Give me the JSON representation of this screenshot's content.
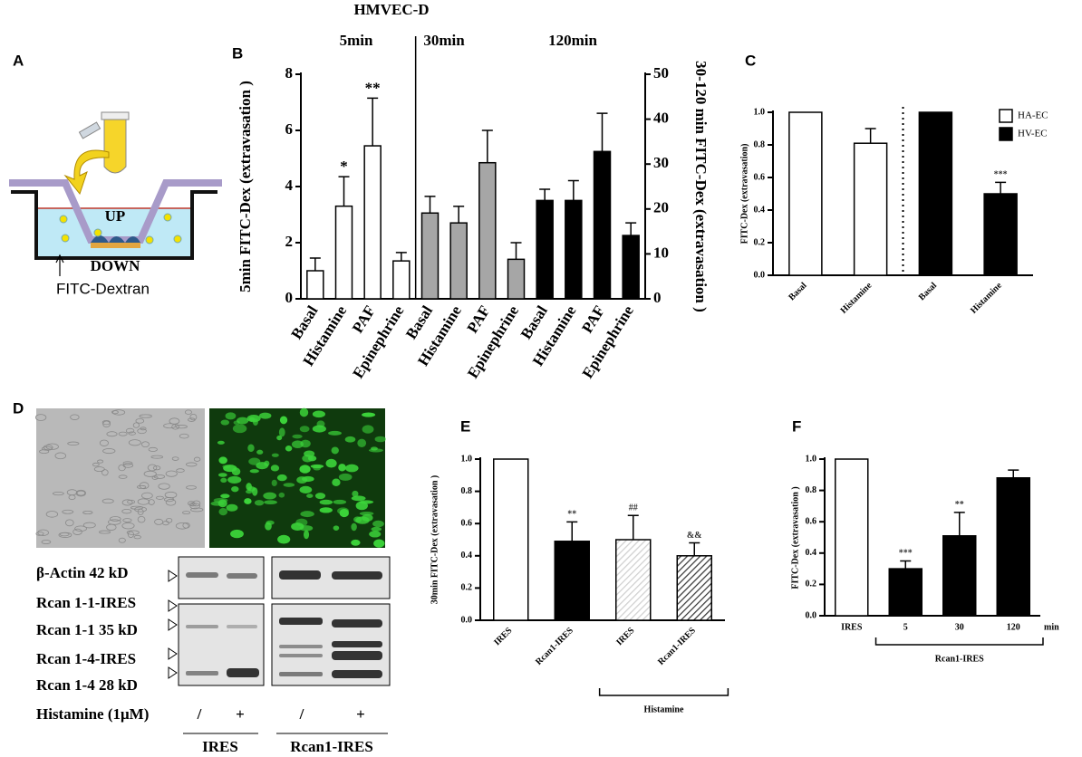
{
  "panel_letters": [
    "A",
    "B",
    "C",
    "D",
    "E",
    "F"
  ],
  "panel_a": {
    "up": "UP",
    "down": "DOWN",
    "label": "FITC-Dextran"
  },
  "panel_d": {
    "rows": [
      "β-Actin  42 kD",
      "Rcan 1-1-IRES",
      "Rcan 1-1  35 kD",
      "Rcan 1-4-IRES",
      "Rcan 1-4  28 kD"
    ],
    "treatment": "Histamine (1μM)",
    "lanes": [
      "/",
      "+",
      "/",
      "+"
    ],
    "groups": [
      "IRES",
      "Rcan1-IRES"
    ]
  },
  "chart_data": [
    {
      "type": "bar",
      "title": "HMVEC-D",
      "ylabel": "5min FITC-Dex (extravasation )",
      "y2label": "30-120 min FITC-Dex (extravasation )",
      "categories": [
        "Basal",
        "Histamine",
        "PAF",
        "Epinephrine",
        "Basal",
        "Histamine",
        "PAF",
        "Epinephrine",
        "Basal",
        "Histamine",
        "PAF",
        "Epinephrine"
      ],
      "ylim": [
        0,
        8
      ],
      "yticks": [
        0,
        2,
        4,
        6,
        8
      ],
      "y2lim": [
        0,
        50
      ],
      "y2ticks": [
        0,
        10,
        20,
        30,
        40,
        50
      ],
      "series": [
        {
          "name": "5min",
          "color": "#ffffff",
          "values": [
            1.0,
            3.3,
            5.45,
            1.35,
            null,
            null,
            null,
            null,
            null,
            null,
            null,
            null
          ],
          "errors": [
            0.45,
            1.05,
            1.7,
            0.3,
            null,
            null,
            null,
            null,
            null,
            null,
            null,
            null
          ],
          "labels": [
            null,
            "*",
            "**",
            null,
            null,
            null,
            null,
            null,
            null,
            null,
            null,
            null
          ]
        },
        {
          "name": "30min",
          "color": "#a6a6a6",
          "axis": "y2",
          "values": [
            null,
            null,
            null,
            null,
            19.1,
            16.9,
            30.3,
            8.8,
            null,
            null,
            null,
            null
          ],
          "errors": [
            null,
            null,
            null,
            null,
            3.7,
            3.7,
            7.2,
            3.7,
            null,
            null,
            null,
            null
          ]
        },
        {
          "name": "120min",
          "color": "#000000",
          "axis": "y2",
          "values": [
            null,
            null,
            null,
            null,
            null,
            null,
            null,
            null,
            21.9,
            21.9,
            32.8,
            14.1
          ],
          "errors": [
            null,
            null,
            null,
            null,
            null,
            null,
            null,
            null,
            2.5,
            4.4,
            8.5,
            2.8
          ]
        }
      ]
    },
    {
      "type": "bar",
      "ylabel": "FITC-Dex (extravasation)",
      "categories": [
        "Basal",
        "Histamine",
        "Basal",
        "Histamine"
      ],
      "ylim": [
        0,
        1
      ],
      "yticks": [
        {
          "value": 0,
          "label": "0.0"
        },
        0.2,
        0.4,
        0.6,
        0.8,
        {
          "value": 1,
          "label": "1.0"
        }
      ],
      "legend": "upper right",
      "series": [
        {
          "name": "HA-EC",
          "color": "#ffffff",
          "values": [
            1.0,
            0.81,
            null,
            null
          ],
          "errors": [
            null,
            0.09,
            null,
            null
          ]
        },
        {
          "name": "HV-EC",
          "color": "#000000",
          "values": [
            null,
            null,
            1.0,
            0.5
          ],
          "errors": [
            null,
            null,
            null,
            0.07
          ],
          "labels": [
            null,
            null,
            null,
            "***"
          ]
        }
      ]
    },
    {
      "type": "bar",
      "ylabel": "30min FITC-Dex (extravasation )",
      "categories": [
        "IRES",
        "Rcan1-IRES",
        "IRES",
        "Rcan1-IRES"
      ],
      "group_label": "Histamine",
      "ylim": [
        0,
        1
      ],
      "yticks": [
        {
          "value": 0,
          "label": "0.0"
        },
        0.2,
        0.4,
        0.6,
        0.8,
        {
          "value": 1,
          "label": "1.0"
        }
      ],
      "series": [
        {
          "colors": [
            "#ffffff",
            "#000000",
            "#d0d0d0",
            "#3a3a3a"
          ],
          "hatched": [
            false,
            false,
            true,
            true
          ],
          "values": [
            1.0,
            0.49,
            0.5,
            0.4
          ],
          "errors": [
            null,
            0.12,
            0.15,
            0.08
          ],
          "labels": [
            null,
            "**",
            "##",
            "&&"
          ]
        }
      ]
    },
    {
      "type": "bar",
      "ylabel": "FITC-Dex (extravasation )",
      "categories": [
        "IRES",
        "5",
        "30",
        "120"
      ],
      "x_unit": "min",
      "group_label": "Rcan1-IRES",
      "ylim": [
        0,
        1
      ],
      "yticks": [
        {
          "value": 0,
          "label": "0.0"
        },
        0.2,
        0.4,
        0.6,
        0.8,
        {
          "value": 1,
          "label": "1.0"
        }
      ],
      "series": [
        {
          "colors": [
            "#ffffff",
            "#000000",
            "#000000",
            "#000000"
          ],
          "values": [
            1.0,
            0.3,
            0.51,
            0.88
          ],
          "errors": [
            null,
            0.05,
            0.15,
            0.05
          ],
          "labels": [
            null,
            "***",
            "**",
            null
          ]
        }
      ]
    }
  ]
}
